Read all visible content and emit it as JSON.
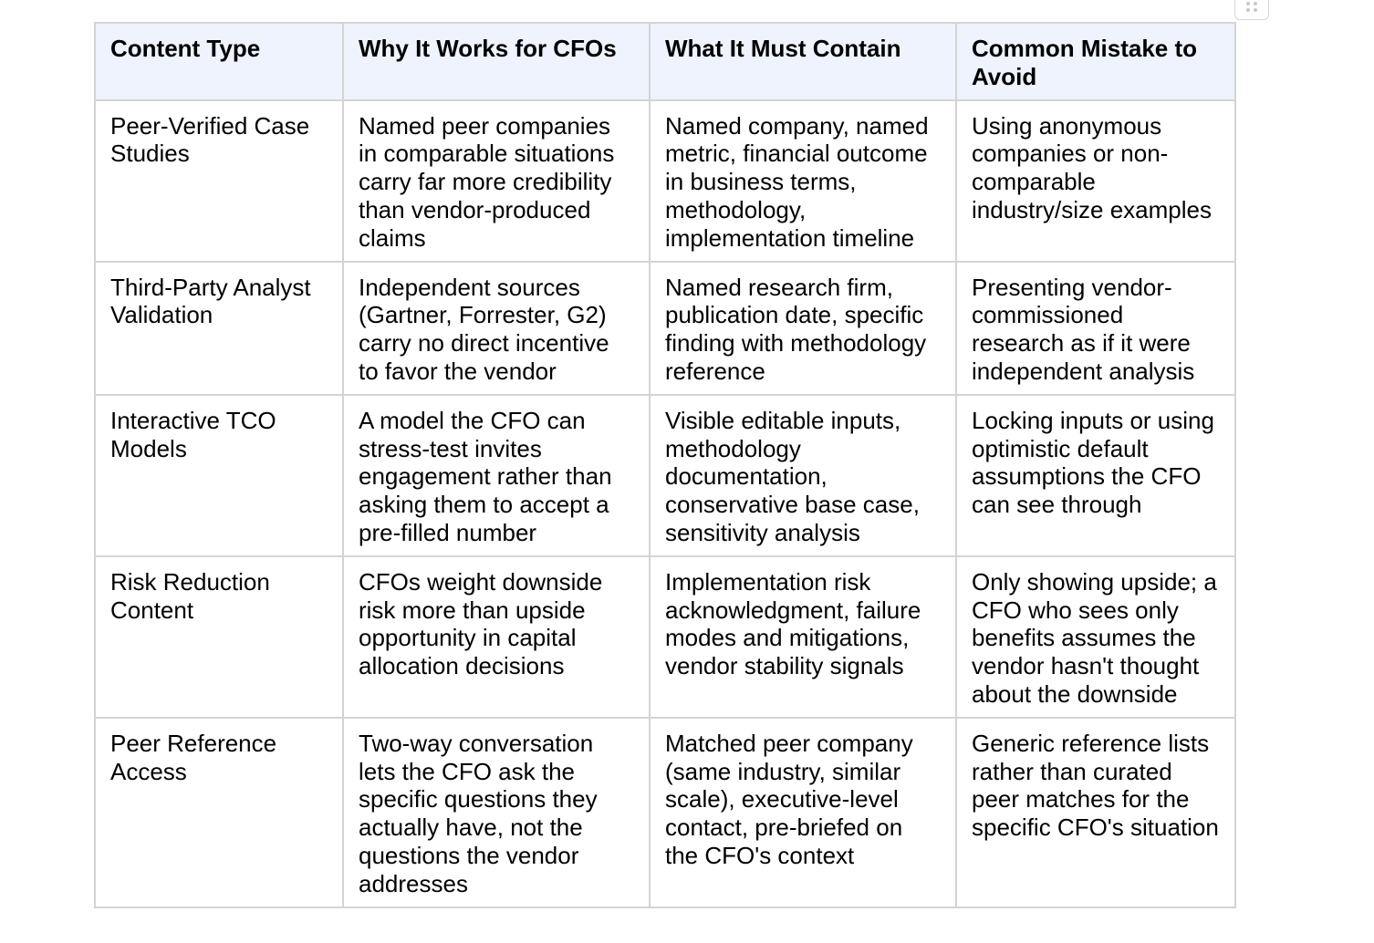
{
  "table": {
    "headers": [
      "Content Type",
      "Why It Works for CFOs",
      "What It Must Contain",
      "Common Mistake to Avoid"
    ],
    "rows": [
      [
        "Peer-Verified Case Studies",
        "Named peer companies in comparable situations carry far more credibility than vendor-produced claims",
        "Named company, named metric, financial outcome in business terms, methodology, implementation timeline",
        "Using anonymous companies or non-comparable industry/size examples"
      ],
      [
        "Third-Party Analyst Validation",
        "Independent sources (Gartner, Forrester, G2) carry no direct incentive to favor the vendor",
        "Named research firm, publication date, specific finding with methodology reference",
        "Presenting vendor-commissioned research as if it were independent analysis"
      ],
      [
        "Interactive TCO Models",
        "A model the CFO can stress-test invites engagement rather than asking them to accept a pre-filled number",
        "Visible editable inputs, methodology documentation, conservative base case, sensitivity analysis",
        "Locking inputs or using optimistic default assumptions the CFO can see through"
      ],
      [
        "Risk Reduction Content",
        "CFOs weight downside risk more than upside opportunity in capital allocation decisions",
        "Implementation risk acknowledgment, failure modes and mitigations, vendor stability signals",
        "Only showing upside; a CFO who sees only benefits assumes the vendor hasn't thought about the downside"
      ],
      [
        "Peer Reference Access",
        "Two-way conversation lets the CFO ask the specific questions they actually have, not the questions the vendor addresses",
        "Matched peer company (same industry, similar scale), executive-level contact, pre-briefed on the CFO's context",
        "Generic reference lists rather than curated peer matches for the specific CFO's situation"
      ]
    ]
  },
  "colors": {
    "header_background": "#eef3fd",
    "border": "#d4d4d4",
    "text": "#000000"
  },
  "icons": {
    "drag_handle": "drag-dots-icon"
  }
}
